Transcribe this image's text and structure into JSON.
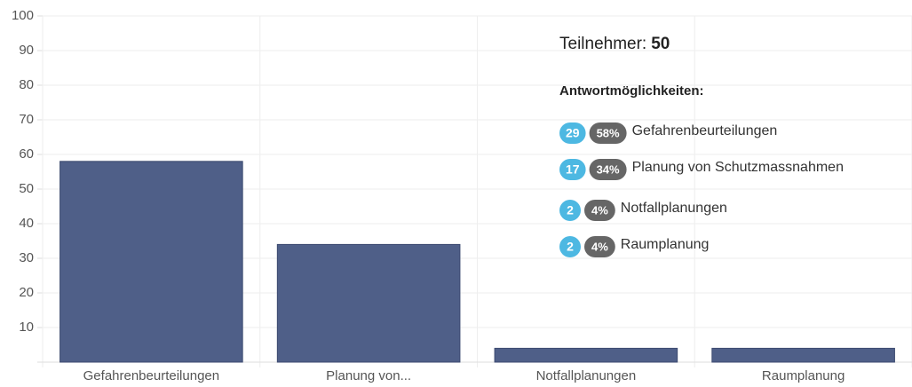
{
  "chart_data": {
    "type": "bar",
    "categories": [
      "Gefahrenbeurteilungen",
      "Planung von...",
      "Notfallplanungen",
      "Raumplanung"
    ],
    "values": [
      58,
      34,
      4,
      4
    ],
    "value_labels": [
      "58%",
      "34%",
      "4%",
      "4%"
    ],
    "color": "#4f5f88",
    "ylim": [
      0,
      100
    ],
    "yticks": [
      10,
      20,
      30,
      40,
      50,
      60,
      70,
      80,
      90,
      100
    ],
    "grid": true,
    "participants_label": "Teilnehmer:",
    "participants": 50,
    "options_title": "Antwortmöglichkeiten:",
    "counts": [
      29,
      17,
      2,
      2
    ],
    "option_names": [
      "Gefahrenbeurteilungen",
      "Planung von Schutzmassnahmen",
      "Notfallplanungen",
      "Raumplanung"
    ]
  }
}
